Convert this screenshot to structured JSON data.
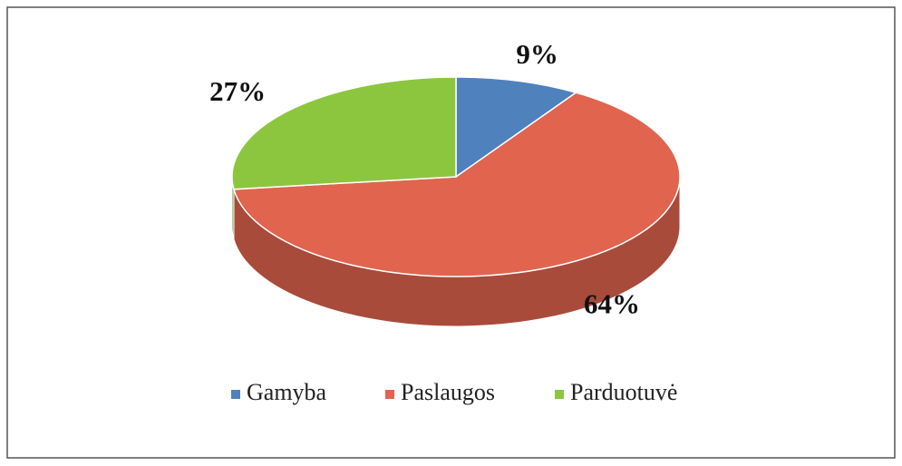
{
  "chart_data": {
    "type": "pie",
    "categories": [
      "Gamyba",
      "Paslaugos",
      "Parduotuvė"
    ],
    "values": [
      9,
      64,
      27
    ],
    "value_labels": [
      "9%",
      "64%",
      "27%"
    ],
    "colors": [
      "#4f81bd",
      "#e0644e",
      "#8cc63f"
    ],
    "legend": "bottom"
  }
}
